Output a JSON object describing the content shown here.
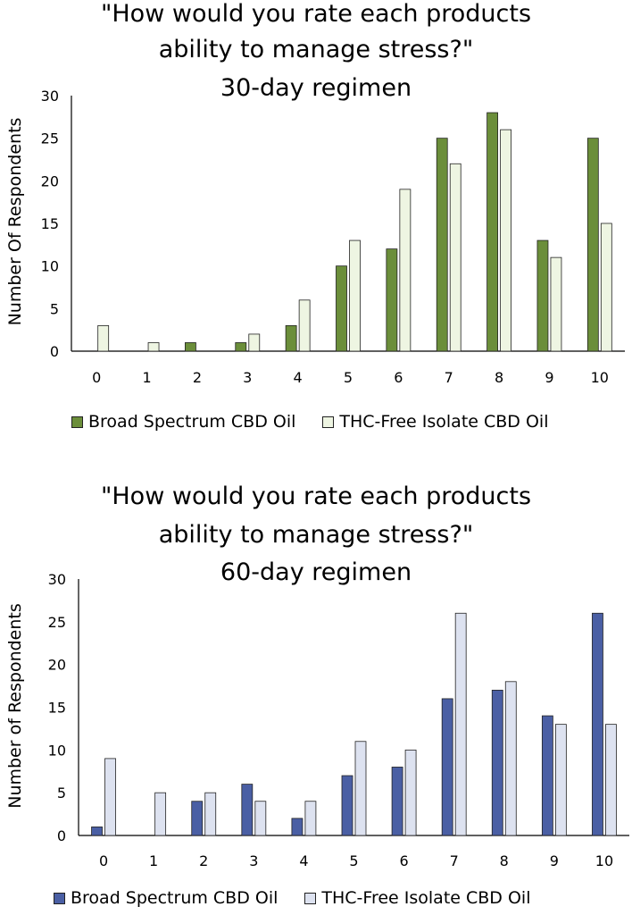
{
  "chart_data": [
    {
      "type": "bar",
      "title": [
        "\"How would you rate each products",
        "ability to manage stress?\"",
        "30-day regimen"
      ],
      "ylabel": "Number Of Respondents",
      "xlabel": "",
      "categories": [
        "0",
        "1",
        "2",
        "3",
        "4",
        "5",
        "6",
        "7",
        "8",
        "9",
        "10"
      ],
      "ylim": [
        0,
        30
      ],
      "yticks": [
        0,
        5,
        10,
        15,
        20,
        25,
        30
      ],
      "grid": false,
      "legend_position": "bottom",
      "series": [
        {
          "name": "Broad Spectrum CBD Oil",
          "color": "#6b8e3a",
          "values": [
            0,
            0,
            1,
            1,
            3,
            10,
            12,
            25,
            28,
            13,
            25
          ]
        },
        {
          "name": "THC-Free Isolate CBD Oil",
          "color": "#eef5e2",
          "values": [
            3,
            1,
            0,
            2,
            6,
            13,
            19,
            22,
            26,
            11,
            15
          ]
        }
      ]
    },
    {
      "type": "bar",
      "title": [
        "\"How would you rate each products",
        "ability to manage stress?\"",
        "60-day regimen"
      ],
      "ylabel": "Number of Respondents",
      "xlabel": "",
      "categories": [
        "0",
        "1",
        "2",
        "3",
        "4",
        "5",
        "6",
        "7",
        "8",
        "9",
        "10"
      ],
      "ylim": [
        0,
        30
      ],
      "yticks": [
        0,
        5,
        10,
        15,
        20,
        25,
        30
      ],
      "grid": false,
      "legend_position": "bottom",
      "series": [
        {
          "name": "Broad Spectrum CBD Oil",
          "color": "#4a5fa4",
          "values": [
            1,
            0,
            4,
            6,
            2,
            7,
            8,
            16,
            17,
            14,
            26
          ]
        },
        {
          "name": "THC-Free Isolate CBD Oil",
          "color": "#dde2f0",
          "values": [
            9,
            5,
            5,
            4,
            4,
            11,
            10,
            26,
            18,
            13,
            13
          ]
        }
      ]
    }
  ]
}
